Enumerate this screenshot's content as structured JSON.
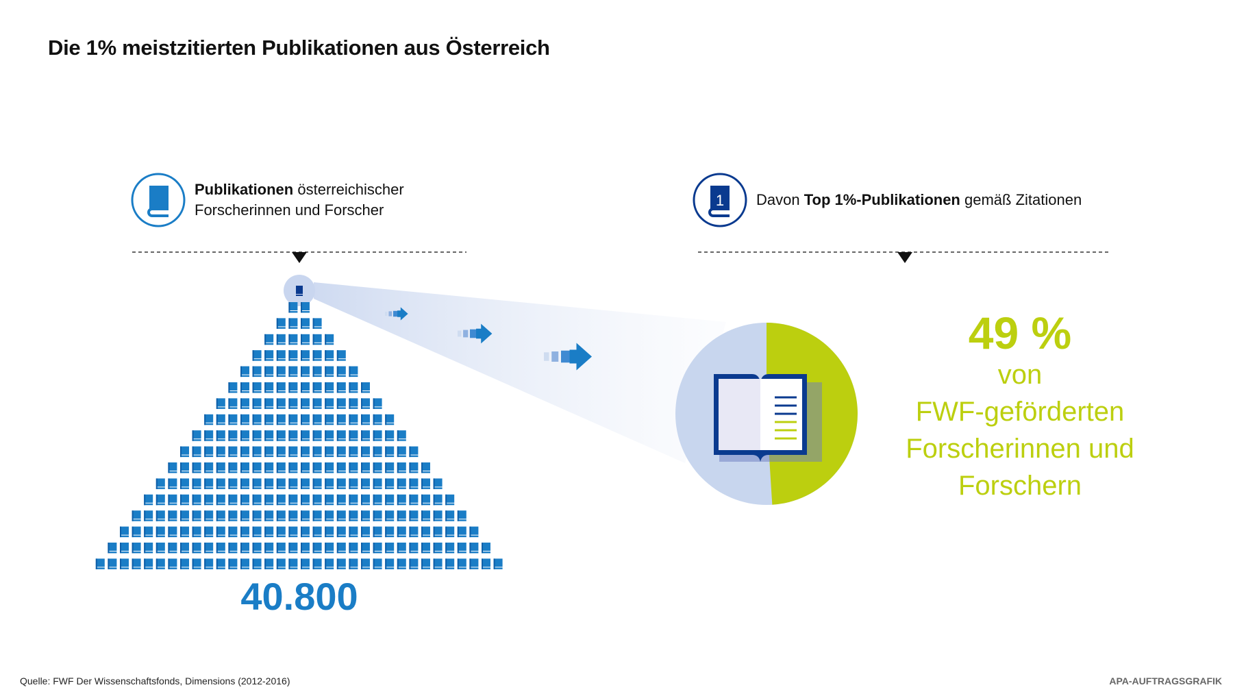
{
  "title": "Die 1% meistzitierten Publikationen aus Österreich",
  "left_header": {
    "bold": "Publikationen",
    "rest": " österreichischer",
    "line2": "Forscherinnen und Forscher",
    "icon": "book-icon"
  },
  "right_header": {
    "pre": "Davon ",
    "bold": "Top 1%-Publikationen",
    "rest": " gemäß Zitationen",
    "icon": "book-number-one-icon"
  },
  "total_publications": "40.800",
  "top_share": {
    "value_label": "49 %",
    "value": 49,
    "line1": "von",
    "line2": "FWF-geförderten",
    "line3": "Forscherinnen und",
    "line4": "Forschern"
  },
  "colors": {
    "blue": "#1a7dc6",
    "dark_blue": "#0a3a8f",
    "green": "#bccf0f",
    "light_blue": "#c8d6ee"
  },
  "source": "Quelle: FWF Der Wissenschaftsfonds, Dimensions (2012-2016)",
  "credit": "APA-AUFTRAGSGRAFIK"
}
